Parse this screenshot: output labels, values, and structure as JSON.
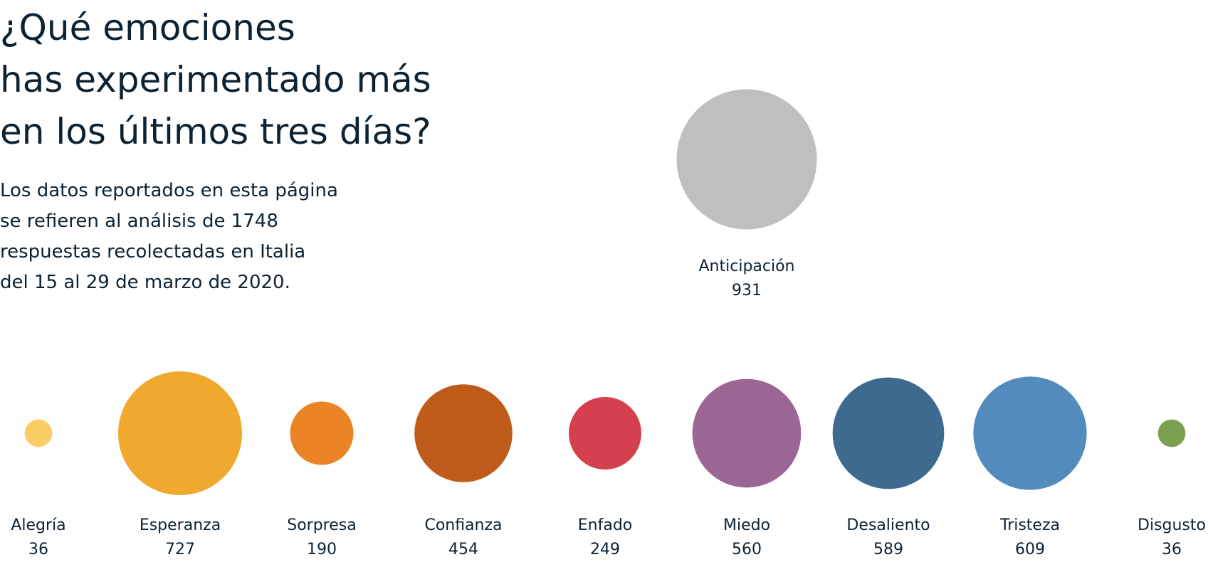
{
  "chart_data": {
    "type": "bubble",
    "title": [
      "¿Qué emociones",
      "has experimentado más",
      "en los últimos tres días?"
    ],
    "subtitle": [
      "Los datos reportados en esta página",
      "se refieren al análisis de 1748",
      "respuestas recolectadas en Italia",
      "del 15 al 29 de marzo de 2020."
    ],
    "categories": [
      "Alegría",
      "Esperanza",
      "Sorpresa",
      "Confianza",
      "Enfado",
      "Miedo",
      "Desaliento",
      "Tristeza",
      "Disgusto",
      "Anticipación"
    ],
    "values": [
      36,
      727,
      190,
      454,
      249,
      560,
      589,
      609,
      36,
      931
    ],
    "colors": [
      "#fbcd66",
      "#f0a92e",
      "#ea8427",
      "#bf5b1b",
      "#d4404e",
      "#9c6695",
      "#3f6a8f",
      "#548bbd",
      "#7ba050",
      "#bfbfbf"
    ]
  }
}
